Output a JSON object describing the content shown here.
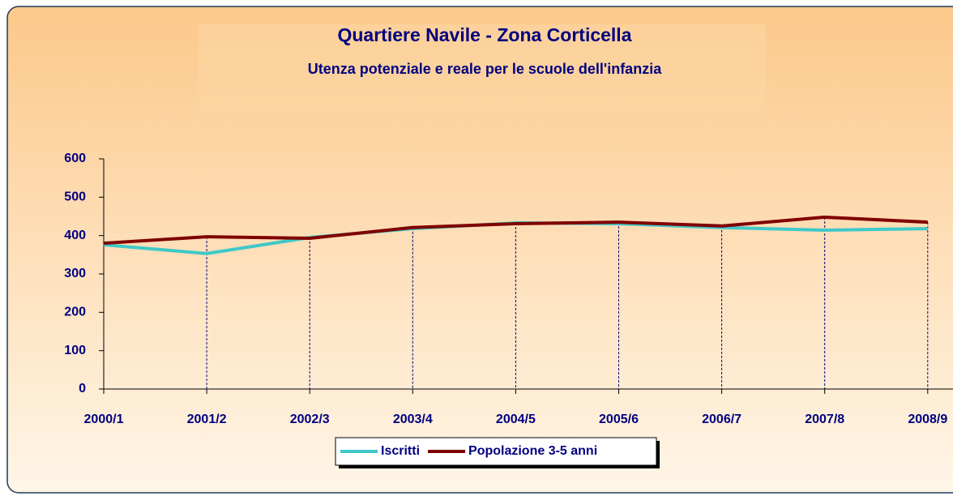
{
  "chart_data": {
    "type": "line",
    "title": "Quartiere Navile - Zona Corticella",
    "subtitle": "Utenza potenziale e reale per le scuole dell'infanzia",
    "categories": [
      "2000/1",
      "2001/2",
      "2002/3",
      "2003/4",
      "2004/5",
      "2005/6",
      "2006/7",
      "2007/8",
      "2008/9"
    ],
    "series": [
      {
        "name": "Iscritti",
        "color": "#40c8c8",
        "values": [
          376,
          353,
          395,
          418,
          433,
          431,
          421,
          414,
          418
        ]
      },
      {
        "name": "Popolazione 3-5 anni",
        "color": "#800000",
        "values": [
          380,
          397,
          393,
          421,
          431,
          435,
          425,
          448,
          435
        ]
      }
    ],
    "ylim": [
      0,
      600
    ],
    "yticks": [
      0,
      100,
      200,
      300,
      400,
      500,
      600
    ],
    "legend": "bottom"
  }
}
